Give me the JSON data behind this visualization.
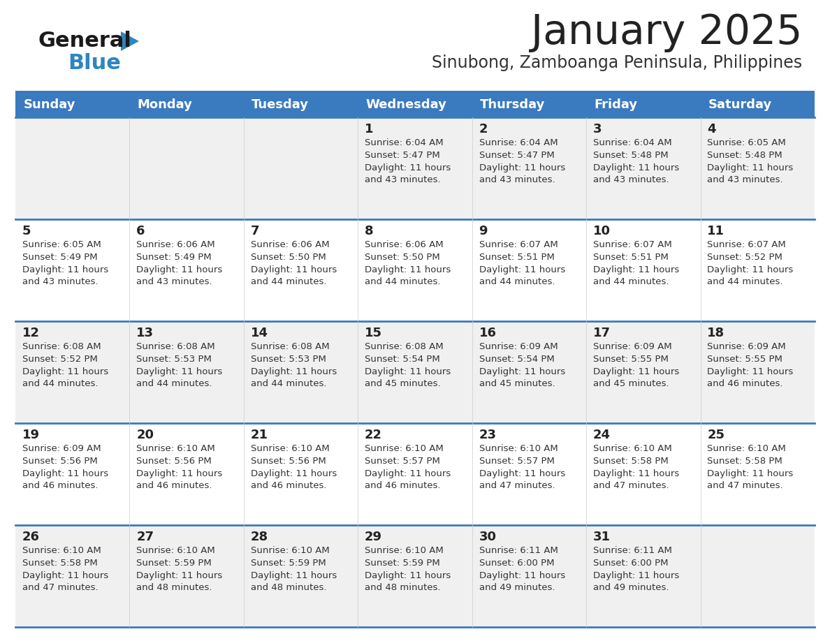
{
  "title": "January 2025",
  "subtitle": "Sinubong, Zamboanga Peninsula, Philippines",
  "days_of_week": [
    "Sunday",
    "Monday",
    "Tuesday",
    "Wednesday",
    "Thursday",
    "Friday",
    "Saturday"
  ],
  "header_bg": "#3a7abf",
  "header_text": "#ffffff",
  "row_bg_odd": "#f0f0f0",
  "row_bg_even": "#ffffff",
  "cell_text": "#333333",
  "day_num_color": "#222222",
  "separator_color": "#3a7abf",
  "logo_black": "#1a1a1a",
  "logo_blue": "#2e86c1",
  "title_color": "#222222",
  "subtitle_color": "#333333",
  "calendar": [
    [
      {
        "day": "",
        "sunrise": "",
        "sunset": "",
        "daylight": ""
      },
      {
        "day": "",
        "sunrise": "",
        "sunset": "",
        "daylight": ""
      },
      {
        "day": "",
        "sunrise": "",
        "sunset": "",
        "daylight": ""
      },
      {
        "day": "1",
        "sunrise": "6:04 AM",
        "sunset": "5:47 PM",
        "daylight": "11 hours and 43 minutes."
      },
      {
        "day": "2",
        "sunrise": "6:04 AM",
        "sunset": "5:47 PM",
        "daylight": "11 hours and 43 minutes."
      },
      {
        "day": "3",
        "sunrise": "6:04 AM",
        "sunset": "5:48 PM",
        "daylight": "11 hours and 43 minutes."
      },
      {
        "day": "4",
        "sunrise": "6:05 AM",
        "sunset": "5:48 PM",
        "daylight": "11 hours and 43 minutes."
      }
    ],
    [
      {
        "day": "5",
        "sunrise": "6:05 AM",
        "sunset": "5:49 PM",
        "daylight": "11 hours and 43 minutes."
      },
      {
        "day": "6",
        "sunrise": "6:06 AM",
        "sunset": "5:49 PM",
        "daylight": "11 hours and 43 minutes."
      },
      {
        "day": "7",
        "sunrise": "6:06 AM",
        "sunset": "5:50 PM",
        "daylight": "11 hours and 44 minutes."
      },
      {
        "day": "8",
        "sunrise": "6:06 AM",
        "sunset": "5:50 PM",
        "daylight": "11 hours and 44 minutes."
      },
      {
        "day": "9",
        "sunrise": "6:07 AM",
        "sunset": "5:51 PM",
        "daylight": "11 hours and 44 minutes."
      },
      {
        "day": "10",
        "sunrise": "6:07 AM",
        "sunset": "5:51 PM",
        "daylight": "11 hours and 44 minutes."
      },
      {
        "day": "11",
        "sunrise": "6:07 AM",
        "sunset": "5:52 PM",
        "daylight": "11 hours and 44 minutes."
      }
    ],
    [
      {
        "day": "12",
        "sunrise": "6:08 AM",
        "sunset": "5:52 PM",
        "daylight": "11 hours and 44 minutes."
      },
      {
        "day": "13",
        "sunrise": "6:08 AM",
        "sunset": "5:53 PM",
        "daylight": "11 hours and 44 minutes."
      },
      {
        "day": "14",
        "sunrise": "6:08 AM",
        "sunset": "5:53 PM",
        "daylight": "11 hours and 44 minutes."
      },
      {
        "day": "15",
        "sunrise": "6:08 AM",
        "sunset": "5:54 PM",
        "daylight": "11 hours and 45 minutes."
      },
      {
        "day": "16",
        "sunrise": "6:09 AM",
        "sunset": "5:54 PM",
        "daylight": "11 hours and 45 minutes."
      },
      {
        "day": "17",
        "sunrise": "6:09 AM",
        "sunset": "5:55 PM",
        "daylight": "11 hours and 45 minutes."
      },
      {
        "day": "18",
        "sunrise": "6:09 AM",
        "sunset": "5:55 PM",
        "daylight": "11 hours and 46 minutes."
      }
    ],
    [
      {
        "day": "19",
        "sunrise": "6:09 AM",
        "sunset": "5:56 PM",
        "daylight": "11 hours and 46 minutes."
      },
      {
        "day": "20",
        "sunrise": "6:10 AM",
        "sunset": "5:56 PM",
        "daylight": "11 hours and 46 minutes."
      },
      {
        "day": "21",
        "sunrise": "6:10 AM",
        "sunset": "5:56 PM",
        "daylight": "11 hours and 46 minutes."
      },
      {
        "day": "22",
        "sunrise": "6:10 AM",
        "sunset": "5:57 PM",
        "daylight": "11 hours and 46 minutes."
      },
      {
        "day": "23",
        "sunrise": "6:10 AM",
        "sunset": "5:57 PM",
        "daylight": "11 hours and 47 minutes."
      },
      {
        "day": "24",
        "sunrise": "6:10 AM",
        "sunset": "5:58 PM",
        "daylight": "11 hours and 47 minutes."
      },
      {
        "day": "25",
        "sunrise": "6:10 AM",
        "sunset": "5:58 PM",
        "daylight": "11 hours and 47 minutes."
      }
    ],
    [
      {
        "day": "26",
        "sunrise": "6:10 AM",
        "sunset": "5:58 PM",
        "daylight": "11 hours and 47 minutes."
      },
      {
        "day": "27",
        "sunrise": "6:10 AM",
        "sunset": "5:59 PM",
        "daylight": "11 hours and 48 minutes."
      },
      {
        "day": "28",
        "sunrise": "6:10 AM",
        "sunset": "5:59 PM",
        "daylight": "11 hours and 48 minutes."
      },
      {
        "day": "29",
        "sunrise": "6:10 AM",
        "sunset": "5:59 PM",
        "daylight": "11 hours and 48 minutes."
      },
      {
        "day": "30",
        "sunrise": "6:11 AM",
        "sunset": "6:00 PM",
        "daylight": "11 hours and 49 minutes."
      },
      {
        "day": "31",
        "sunrise": "6:11 AM",
        "sunset": "6:00 PM",
        "daylight": "11 hours and 49 minutes."
      },
      {
        "day": "",
        "sunrise": "",
        "sunset": "",
        "daylight": ""
      }
    ]
  ]
}
